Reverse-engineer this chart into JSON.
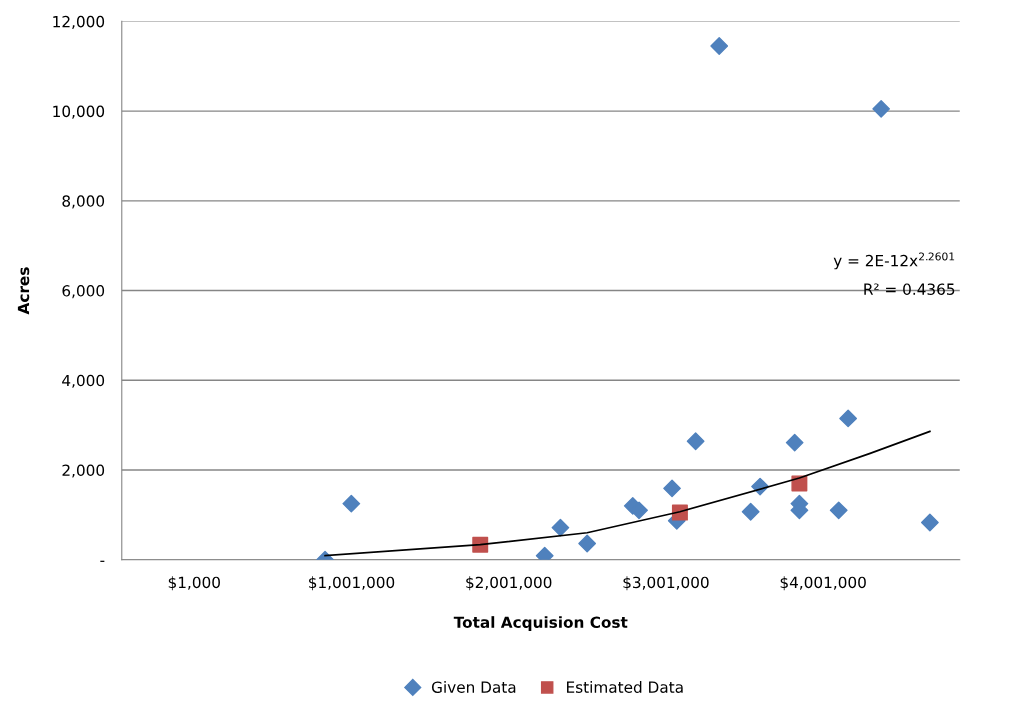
{
  "chart_data": {
    "type": "scatter",
    "xlabel": "Total Acquision Cost",
    "ylabel": "Acres",
    "series": [
      {
        "name": "Given Data",
        "color": "#4f81bd",
        "marker": "diamond",
        "x": [
          833000,
          1000000,
          2230000,
          2330000,
          2500000,
          2790000,
          2830000,
          3040000,
          3070000,
          3190000,
          3340000,
          3540000,
          3600000,
          3820000,
          3850000,
          3850000,
          4100000,
          4160000,
          4370000,
          4680000
        ],
        "values": [
          0,
          1250,
          90,
          715,
          360,
          1200,
          1100,
          1590,
          870,
          2640,
          11450,
          1070,
          1630,
          2610,
          1250,
          1100,
          1100,
          3150,
          10050,
          830
        ]
      },
      {
        "name": "Estimated Data",
        "color": "#c0504d",
        "marker": "square",
        "x": [
          1820000,
          3090000,
          3850000
        ],
        "values": [
          335,
          1050,
          1700
        ]
      },
      {
        "type": "line",
        "color": "#000000",
        "marker": "none",
        "x": [
          833000,
          1820000,
          2500000,
          3090000,
          3850000,
          4300000,
          4680000
        ],
        "values": [
          90,
          335,
          600,
          1070,
          1820,
          2370,
          2860
        ]
      }
    ],
    "xlim": [
      -460000,
      4870000
    ],
    "xticks": [
      {
        "value": 1000,
        "label": "$1,000"
      },
      {
        "value": 1001000,
        "label": "$1,001,000"
      },
      {
        "value": 2001000,
        "label": "$2,001,000"
      },
      {
        "value": 3001000,
        "label": "$3,001,000"
      },
      {
        "value": 4001000,
        "label": "$4,001,000"
      }
    ],
    "ylim": [
      0,
      12000
    ],
    "yticks": [
      {
        "value": 0,
        "label": "-"
      },
      {
        "value": 2000,
        "label": "2,000"
      },
      {
        "value": 4000,
        "label": "4,000"
      },
      {
        "value": 6000,
        "label": "6,000"
      },
      {
        "value": 8000,
        "label": "8,000"
      },
      {
        "value": 10000,
        "label": "10,000"
      },
      {
        "value": 12000,
        "label": "12,000"
      }
    ],
    "grid": "y",
    "legend": "bottom",
    "annotations": [
      "y = 2E-12x$^{2.2601}$",
      "R² = 0.4365"
    ]
  }
}
